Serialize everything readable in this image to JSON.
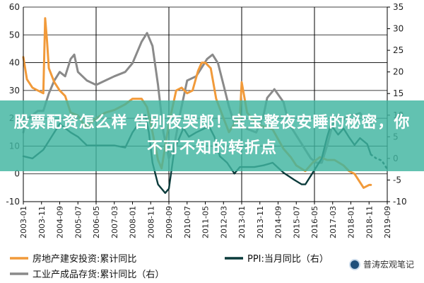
{
  "banner": {
    "text": "股票配资怎么样 告别夜哭郎！宝宝整夜安睡的秘密，你不可不知的转折点"
  },
  "watermark": {
    "text": "普涛宏观笔记",
    "icon": "wechat-logo-icon"
  },
  "colors": {
    "real_estate": "#f19a3a",
    "inventory": "#8a8a8a",
    "ppi": "#0b3b3b",
    "banner": "#40b4a0",
    "grid": "#000000"
  },
  "chart_data": {
    "type": "line",
    "title": "",
    "x_tick_labels": [
      "2003-01",
      "2003-11",
      "2004-09",
      "2005-07",
      "2006-05",
      "2007-03",
      "2008-01",
      "2008-11",
      "2009-09",
      "2010-07",
      "2011-05",
      "2012-03",
      "2013-01",
      "2013-11",
      "2014-09",
      "2015-07",
      "2016-05",
      "2017-03",
      "2018-01",
      "2018-11",
      "2019-09"
    ],
    "vertical_lines": [
      "2006-05",
      "2009-09",
      "2013-01",
      "2016-05",
      "2019-09"
    ],
    "left_axis": {
      "ylim": [
        -10,
        60
      ],
      "ticks": [
        -10,
        0,
        10,
        20,
        30,
        40,
        50,
        60
      ]
    },
    "right_axis": {
      "ylim": [
        -10,
        35
      ],
      "ticks": [
        -10,
        -5,
        0,
        5,
        10,
        15,
        20,
        25,
        30,
        35
      ]
    },
    "series": [
      {
        "name": "房地产建安投资:累计同比",
        "axis": "left",
        "style": "solid",
        "points": [
          [
            "2003-01",
            42
          ],
          [
            "2003-03",
            34
          ],
          [
            "2003-06",
            31
          ],
          [
            "2003-09",
            30
          ],
          [
            "2003-12",
            29
          ],
          [
            "2004-01",
            56
          ],
          [
            "2004-02",
            48
          ],
          [
            "2004-03",
            38
          ],
          [
            "2004-06",
            33
          ],
          [
            "2004-09",
            30
          ],
          [
            "2004-12",
            28
          ],
          [
            "2005-03",
            22
          ],
          [
            "2005-07",
            21
          ],
          [
            "2005-10",
            18
          ],
          [
            "2005-12",
            17
          ],
          [
            "2006-05",
            20
          ],
          [
            "2006-10",
            22
          ],
          [
            "2007-03",
            23
          ],
          [
            "2007-09",
            25
          ],
          [
            "2008-01",
            27
          ],
          [
            "2008-06",
            27
          ],
          [
            "2008-09",
            24
          ],
          [
            "2008-12",
            15
          ],
          [
            "2009-03",
            5
          ],
          [
            "2009-05",
            2
          ],
          [
            "2009-09",
            18
          ],
          [
            "2010-01",
            30
          ],
          [
            "2010-04",
            31
          ],
          [
            "2010-07",
            29
          ],
          [
            "2010-10",
            30
          ],
          [
            "2011-01",
            37
          ],
          [
            "2011-03",
            40
          ],
          [
            "2011-05",
            40
          ],
          [
            "2011-08",
            38
          ],
          [
            "2011-11",
            27
          ],
          [
            "2012-03",
            20
          ],
          [
            "2012-06",
            15
          ],
          [
            "2012-09",
            18
          ],
          [
            "2012-12",
            20
          ],
          [
            "2013-01",
            33
          ],
          [
            "2013-04",
            22
          ],
          [
            "2013-09",
            18
          ],
          [
            "2014-01",
            17
          ],
          [
            "2014-06",
            16
          ],
          [
            "2014-12",
            9
          ],
          [
            "2015-04",
            6
          ],
          [
            "2015-07",
            3
          ],
          [
            "2015-12",
            1
          ],
          [
            "2016-04",
            4
          ],
          [
            "2016-08",
            6
          ],
          [
            "2016-12",
            5
          ],
          [
            "2017-04",
            5
          ],
          [
            "2017-09",
            3
          ],
          [
            "2017-12",
            1
          ],
          [
            "2018-03",
            0
          ],
          [
            "2018-05",
            -2
          ],
          [
            "2018-08",
            -5
          ],
          [
            "2018-11",
            -4
          ],
          [
            "2018-12",
            -4
          ]
        ]
      },
      {
        "name": "PPI:当月同比",
        "axis": "right",
        "style": "solid",
        "points": [
          [
            "2003-01",
            0.5
          ],
          [
            "2003-06",
            0
          ],
          [
            "2003-12",
            2
          ],
          [
            "2004-03",
            4
          ],
          [
            "2004-09",
            8
          ],
          [
            "2004-12",
            7
          ],
          [
            "2005-03",
            6
          ],
          [
            "2005-07",
            5
          ],
          [
            "2005-12",
            3
          ],
          [
            "2006-05",
            3
          ],
          [
            "2006-10",
            3
          ],
          [
            "2007-03",
            3
          ],
          [
            "2007-09",
            2.5
          ],
          [
            "2008-01",
            6
          ],
          [
            "2008-06",
            9
          ],
          [
            "2008-08",
            10
          ],
          [
            "2008-10",
            6
          ],
          [
            "2008-12",
            -1
          ],
          [
            "2009-03",
            -6
          ],
          [
            "2009-07",
            -8
          ],
          [
            "2009-09",
            -7
          ],
          [
            "2009-12",
            2
          ],
          [
            "2010-05",
            7
          ],
          [
            "2010-08",
            5
          ],
          [
            "2010-12",
            6
          ],
          [
            "2011-05",
            7
          ],
          [
            "2011-07",
            7.5
          ],
          [
            "2011-10",
            5
          ],
          [
            "2012-01",
            0.5
          ],
          [
            "2012-05",
            -1
          ],
          [
            "2012-09",
            -3.5
          ],
          [
            "2012-12",
            -2
          ],
          [
            "2013-03",
            -2
          ],
          [
            "2013-08",
            -2
          ],
          [
            "2014-01",
            -1.6
          ],
          [
            "2014-06",
            -1
          ],
          [
            "2014-12",
            -3.3
          ],
          [
            "2015-06",
            -5
          ],
          [
            "2015-10",
            -6
          ],
          [
            "2015-12",
            -6
          ],
          [
            "2016-03",
            -4
          ],
          [
            "2016-09",
            0
          ],
          [
            "2016-12",
            5
          ],
          [
            "2017-02",
            7.8
          ],
          [
            "2017-06",
            5.5
          ],
          [
            "2017-09",
            6.9
          ],
          [
            "2017-12",
            4.9
          ],
          [
            "2018-03",
            3.1
          ],
          [
            "2018-06",
            4.7
          ],
          [
            "2018-10",
            3.3
          ],
          [
            "2018-12",
            0.9
          ]
        ]
      },
      {
        "name": "PPI:当月同比 (forecast)",
        "axis": "right",
        "style": "dotted",
        "points": [
          [
            "2018-12",
            0.9
          ],
          [
            "2019-03",
            0
          ],
          [
            "2019-06",
            -0.5
          ],
          [
            "2019-09",
            -2.5
          ]
        ]
      },
      {
        "name": "工业产成品存货:累计同比（右）",
        "axis": "right",
        "style": "solid",
        "points": [
          [
            "2003-01",
            6
          ],
          [
            "2003-03",
            9
          ],
          [
            "2003-06",
            10
          ],
          [
            "2003-09",
            11
          ],
          [
            "2003-12",
            11
          ],
          [
            "2004-03",
            15
          ],
          [
            "2004-06",
            18
          ],
          [
            "2004-09",
            20
          ],
          [
            "2004-12",
            19
          ],
          [
            "2005-03",
            23
          ],
          [
            "2005-05",
            24
          ],
          [
            "2005-07",
            20
          ],
          [
            "2005-12",
            18
          ],
          [
            "2006-05",
            17
          ],
          [
            "2006-10",
            18
          ],
          [
            "2007-03",
            19
          ],
          [
            "2007-09",
            20
          ],
          [
            "2008-01",
            22
          ],
          [
            "2008-06",
            27
          ],
          [
            "2008-09",
            29
          ],
          [
            "2008-12",
            26
          ],
          [
            "2009-03",
            17
          ],
          [
            "2009-06",
            6
          ],
          [
            "2009-09",
            0
          ],
          [
            "2009-12",
            3
          ],
          [
            "2010-03",
            10
          ],
          [
            "2010-07",
            18
          ],
          [
            "2010-12",
            19
          ],
          [
            "2011-03",
            21
          ],
          [
            "2011-06",
            23
          ],
          [
            "2011-09",
            24
          ],
          [
            "2011-12",
            22
          ],
          [
            "2012-03",
            17
          ],
          [
            "2012-06",
            12
          ],
          [
            "2012-09",
            8
          ],
          [
            "2012-12",
            8
          ],
          [
            "2013-03",
            7
          ],
          [
            "2013-09",
            6
          ],
          [
            "2014-01",
            10
          ],
          [
            "2014-03",
            14
          ],
          [
            "2014-07",
            16
          ],
          [
            "2014-12",
            13
          ],
          [
            "2015-03",
            8
          ],
          [
            "2015-09",
            4
          ],
          [
            "2015-12",
            2
          ],
          [
            "2016-03",
            0
          ],
          [
            "2016-06",
            -1
          ],
          [
            "2016-09",
            -1
          ],
          [
            "2016-12",
            3
          ],
          [
            "2017-03",
            8
          ],
          [
            "2017-06",
            10
          ],
          [
            "2017-09",
            9
          ],
          [
            "2017-12",
            10
          ],
          [
            "2018-03",
            10
          ],
          [
            "2018-06",
            10.5
          ],
          [
            "2018-09",
            9
          ],
          [
            "2018-11",
            9
          ],
          [
            "2018-12",
            8
          ]
        ]
      }
    ],
    "legend": [
      {
        "label": "房地产建安投资:累计同比",
        "color": "#f19a3a"
      },
      {
        "label": "PPI:当月同比（右）",
        "color": "#0b3b3b"
      },
      {
        "label": "工业产成品存货:累计同比（右）",
        "color": "#8a8a8a"
      }
    ],
    "legend_position": "bottom"
  }
}
